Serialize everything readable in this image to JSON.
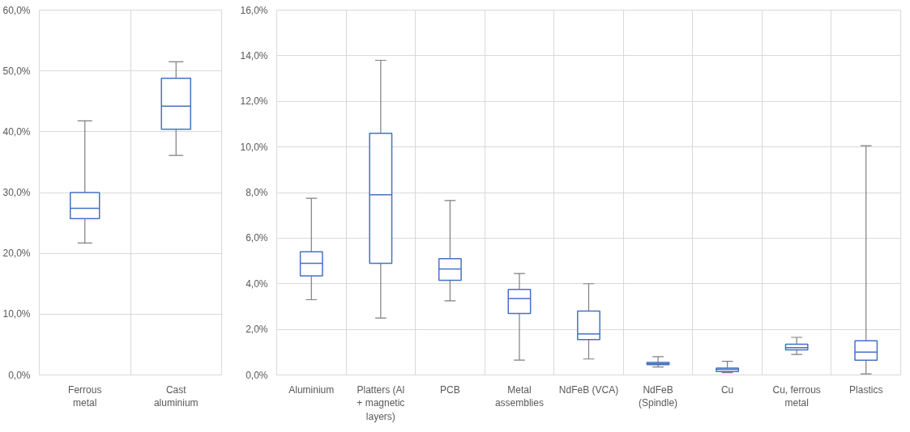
{
  "chart_data": [
    {
      "type": "box",
      "categories": [
        "Ferrous metal",
        "Cast aluminium"
      ],
      "color": "#4472c4",
      "grid": true,
      "boxes": [
        {
          "low": 21.7,
          "q1": 25.7,
          "median": 27.4,
          "q3": 30.0,
          "high": 41.8
        },
        {
          "low": 36.1,
          "q1": 40.4,
          "median": 44.2,
          "q3": 48.8,
          "high": 51.5
        }
      ],
      "ylim": [
        0,
        60
      ],
      "yticks": [
        {
          "value": 0,
          "label": "0,0%"
        },
        {
          "value": 10,
          "label": "10,0%"
        },
        {
          "value": 20,
          "label": "20,0%"
        },
        {
          "value": 30,
          "label": "30,0%"
        },
        {
          "value": 40,
          "label": "40,0%"
        },
        {
          "value": 50,
          "label": "50,0%"
        },
        {
          "value": 60,
          "label": "60,0%"
        }
      ]
    },
    {
      "type": "box",
      "categories": [
        "Aluminium",
        "Platters (Al + magnetic layers)",
        "PCB",
        "Metal assemblies",
        "NdFeB (VCA)",
        "NdFeB (Spindle)",
        "Cu",
        "Cu, ferrous metal",
        "Plastics"
      ],
      "color": "#4472c4",
      "grid": true,
      "boxes": [
        {
          "low": 3.3,
          "q1": 4.35,
          "median": 4.9,
          "q3": 5.4,
          "high": 7.75
        },
        {
          "low": 2.5,
          "q1": 4.9,
          "median": 7.9,
          "q3": 10.6,
          "high": 13.8
        },
        {
          "low": 3.25,
          "q1": 4.15,
          "median": 4.65,
          "q3": 5.1,
          "high": 7.65
        },
        {
          "low": 0.65,
          "q1": 2.7,
          "median": 3.35,
          "q3": 3.75,
          "high": 4.45
        },
        {
          "low": 0.7,
          "q1": 1.55,
          "median": 1.8,
          "q3": 2.8,
          "high": 4.0
        },
        {
          "low": 0.35,
          "q1": 0.45,
          "median": 0.5,
          "q3": 0.55,
          "high": 0.8
        },
        {
          "low": 0.1,
          "q1": 0.15,
          "median": 0.25,
          "q3": 0.3,
          "high": 0.6
        },
        {
          "low": 0.9,
          "q1": 1.1,
          "median": 1.2,
          "q3": 1.35,
          "high": 1.65
        },
        {
          "low": 0.05,
          "q1": 0.65,
          "median": 1.0,
          "q3": 1.5,
          "high": 10.05
        }
      ],
      "ylim": [
        0,
        16
      ],
      "yticks": [
        {
          "value": 0,
          "label": "0,0%"
        },
        {
          "value": 2,
          "label": "2,0%"
        },
        {
          "value": 4,
          "label": "4,0%"
        },
        {
          "value": 6,
          "label": "6,0%"
        },
        {
          "value": 8,
          "label": "8,0%"
        },
        {
          "value": 10,
          "label": "10,0%"
        },
        {
          "value": 12,
          "label": "12,0%"
        },
        {
          "value": 14,
          "label": "14,0%"
        },
        {
          "value": 16,
          "label": "16,0%"
        }
      ]
    }
  ]
}
